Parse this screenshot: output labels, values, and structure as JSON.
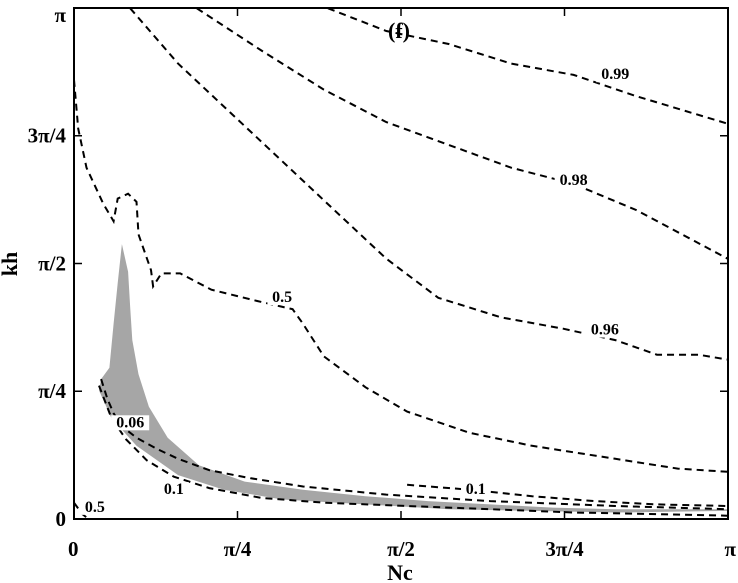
{
  "chart_data": {
    "type": "contour",
    "panel_label": "(f)",
    "xlabel": "Nc",
    "ylabel": "kh",
    "xlim": [
      0,
      3.14159
    ],
    "ylim": [
      0,
      3.14159
    ],
    "x_ticks": [
      {
        "value": 0,
        "label": "0"
      },
      {
        "value": 0.785398,
        "label": "π/4"
      },
      {
        "value": 1.570796,
        "label": "π/2"
      },
      {
        "value": 2.356194,
        "label": "3π/4"
      },
      {
        "value": 3.141593,
        "label": "π"
      }
    ],
    "y_ticks": [
      {
        "value": 0,
        "label": "0"
      },
      {
        "value": 0.785398,
        "label": "π/4"
      },
      {
        "value": 1.570796,
        "label": "π/2"
      },
      {
        "value": 2.356194,
        "label": "3π/4"
      },
      {
        "value": 3.141593,
        "label": "π"
      }
    ],
    "shaded_region": [
      [
        0.13,
        0.86
      ],
      [
        0.17,
        0.93
      ],
      [
        0.19,
        1.2
      ],
      [
        0.21,
        1.45
      ],
      [
        0.23,
        1.69
      ],
      [
        0.26,
        1.52
      ],
      [
        0.27,
        1.3
      ],
      [
        0.28,
        1.1
      ],
      [
        0.31,
        0.89
      ],
      [
        0.36,
        0.69
      ],
      [
        0.45,
        0.5
      ],
      [
        0.6,
        0.33
      ],
      [
        0.82,
        0.23
      ],
      [
        1.1,
        0.18
      ],
      [
        1.4,
        0.14
      ],
      [
        1.7,
        0.11
      ],
      [
        2.0,
        0.09
      ],
      [
        2.3,
        0.07
      ],
      [
        2.6,
        0.06
      ],
      [
        3.14,
        0.06
      ],
      [
        3.14,
        0.05
      ],
      [
        2.6,
        0.04
      ],
      [
        2.2,
        0.05
      ],
      [
        1.8,
        0.06
      ],
      [
        1.4,
        0.09
      ],
      [
        1.0,
        0.12
      ],
      [
        0.72,
        0.18
      ],
      [
        0.5,
        0.27
      ],
      [
        0.3,
        0.45
      ],
      [
        0.18,
        0.62
      ],
      [
        0.12,
        0.79
      ]
    ],
    "contours": [
      {
        "label": "0.99",
        "label_at": [
          2.6,
          2.71
        ],
        "points": [
          [
            1.22,
            3.14
          ],
          [
            1.5,
            3.0
          ],
          [
            1.8,
            2.92
          ],
          [
            2.1,
            2.8
          ],
          [
            2.4,
            2.73
          ],
          [
            2.7,
            2.6
          ],
          [
            3.14,
            2.43
          ]
        ]
      },
      {
        "label": "0.98",
        "label_at": [
          2.4,
          2.06
        ],
        "points": [
          [
            0.59,
            3.14
          ],
          [
            0.9,
            2.88
          ],
          [
            1.2,
            2.64
          ],
          [
            1.5,
            2.44
          ],
          [
            1.8,
            2.3
          ],
          [
            2.1,
            2.16
          ],
          [
            2.4,
            2.06
          ],
          [
            2.7,
            1.9
          ],
          [
            3.14,
            1.6
          ]
        ]
      },
      {
        "label": "0.96",
        "label_at": [
          2.55,
          1.14
        ],
        "points": [
          [
            0.27,
            3.14
          ],
          [
            0.5,
            2.8
          ],
          [
            0.75,
            2.5
          ],
          [
            1.0,
            2.2
          ],
          [
            1.25,
            1.9
          ],
          [
            1.5,
            1.6
          ],
          [
            1.75,
            1.36
          ],
          [
            2.05,
            1.24
          ],
          [
            2.35,
            1.17
          ],
          [
            2.6,
            1.1
          ],
          [
            2.8,
            1.01
          ],
          [
            3.0,
            1.01
          ],
          [
            3.14,
            0.98
          ]
        ]
      },
      {
        "label": "0.5",
        "label_at": [
          1.0,
          1.34
        ],
        "points": [
          [
            0.0,
            2.7
          ],
          [
            0.02,
            2.4
          ],
          [
            0.06,
            2.16
          ],
          [
            0.14,
            1.94
          ],
          [
            0.19,
            1.83
          ],
          [
            0.21,
            1.97
          ],
          [
            0.26,
            2.0
          ],
          [
            0.3,
            1.95
          ],
          [
            0.31,
            1.75
          ],
          [
            0.37,
            1.53
          ],
          [
            0.38,
            1.43
          ],
          [
            0.42,
            1.51
          ],
          [
            0.51,
            1.51
          ],
          [
            0.66,
            1.41
          ],
          [
            0.88,
            1.34
          ],
          [
            1.05,
            1.29
          ],
          [
            1.1,
            1.2
          ],
          [
            1.2,
            1.0
          ],
          [
            1.4,
            0.81
          ],
          [
            1.6,
            0.66
          ],
          [
            1.9,
            0.53
          ],
          [
            2.2,
            0.45
          ],
          [
            2.6,
            0.37
          ],
          [
            2.9,
            0.31
          ],
          [
            3.14,
            0.29
          ]
        ]
      },
      {
        "label": "0.06",
        "label_at": [
          0.27,
          0.57
        ],
        "points": [
          [
            0.13,
            0.86
          ],
          [
            0.16,
            0.74
          ],
          [
            0.19,
            0.65
          ],
          [
            0.23,
            0.57
          ],
          [
            0.3,
            0.5
          ],
          [
            0.4,
            0.43
          ],
          [
            0.5,
            0.37
          ],
          [
            0.65,
            0.3
          ],
          [
            0.85,
            0.25
          ],
          [
            1.1,
            0.2
          ],
          [
            1.5,
            0.15
          ],
          [
            2.0,
            0.11
          ],
          [
            2.6,
            0.08
          ],
          [
            3.14,
            0.06
          ]
        ]
      },
      {
        "label": "0.1",
        "label_at": [
          0.48,
          0.16
        ],
        "points": [
          [
            0.12,
            0.82
          ],
          [
            0.18,
            0.62
          ],
          [
            0.25,
            0.49
          ],
          [
            0.35,
            0.36
          ],
          [
            0.48,
            0.26
          ],
          [
            0.65,
            0.19
          ],
          [
            0.9,
            0.13
          ],
          [
            1.2,
            0.1
          ],
          [
            1.6,
            0.08
          ],
          [
            2.0,
            0.06
          ],
          [
            2.4,
            0.04
          ],
          [
            2.8,
            0.03
          ],
          [
            3.14,
            0.02
          ]
        ]
      },
      {
        "label": "0.1",
        "label_at": [
          1.93,
          0.16
        ],
        "points": [
          [
            1.6,
            0.21
          ],
          [
            1.9,
            0.18
          ],
          [
            2.2,
            0.14
          ],
          [
            2.5,
            0.11
          ],
          [
            2.8,
            0.09
          ],
          [
            3.14,
            0.08
          ]
        ]
      },
      {
        "label": "0.5",
        "label_at": [
          0.1,
          0.05
        ],
        "points": [
          [
            0.0,
            0.1
          ],
          [
            0.04,
            0.03
          ],
          [
            0.07,
            0.0
          ]
        ]
      }
    ]
  }
}
